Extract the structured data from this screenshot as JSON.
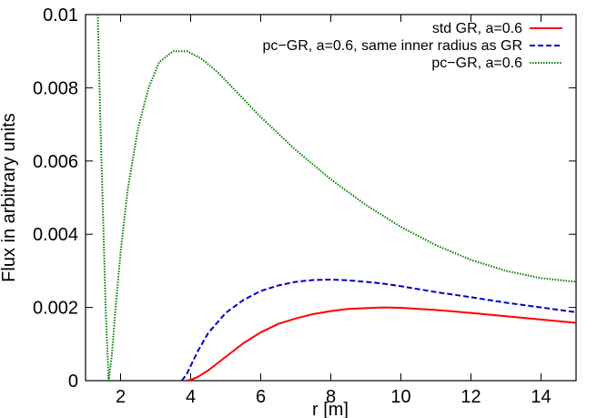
{
  "chart_data": {
    "type": "line",
    "xlabel": "r [m]",
    "ylabel": "Flux in arbitrary units",
    "xlim": [
      1,
      15
    ],
    "ylim": [
      0,
      0.01
    ],
    "xticks": [
      "2",
      "4",
      "6",
      "8",
      "10",
      "12",
      "14"
    ],
    "yticks": [
      "0",
      "0.002",
      "0.004",
      "0.006",
      "0.008",
      "0.01"
    ],
    "legend_position": "top-right",
    "grid": false,
    "series": [
      {
        "name": "std GR, a=0.6",
        "color": "#ff0000",
        "dash": "solid",
        "x": [
          3.85,
          4.0,
          4.2,
          4.5,
          5.0,
          5.5,
          6.0,
          6.5,
          7.0,
          7.5,
          8.0,
          8.5,
          9.0,
          9.5,
          10.0,
          11.0,
          12.0,
          13.0,
          14.0,
          15.0
        ],
        "y": [
          0.0,
          2e-05,
          0.0001,
          0.00028,
          0.00065,
          0.00102,
          0.00132,
          0.00155,
          0.0017,
          0.00182,
          0.0019,
          0.00196,
          0.00198,
          0.002,
          0.00199,
          0.00193,
          0.00185,
          0.00176,
          0.00167,
          0.00158
        ]
      },
      {
        "name": "pc−GR, a=0.6, same inner radius as GR",
        "color": "#0000cc",
        "dash": "dashed",
        "x": [
          3.75,
          3.9,
          4.0,
          4.2,
          4.5,
          5.0,
          5.5,
          6.0,
          6.5,
          7.0,
          7.5,
          8.0,
          8.5,
          9.0,
          9.5,
          10.0,
          11.0,
          12.0,
          13.0,
          14.0,
          15.0
        ],
        "y": [
          0.0,
          0.0002,
          0.0004,
          0.0008,
          0.0013,
          0.00185,
          0.0022,
          0.00245,
          0.0026,
          0.0027,
          0.00275,
          0.00276,
          0.00274,
          0.0027,
          0.00265,
          0.00258,
          0.00242,
          0.00228,
          0.00213,
          0.002,
          0.00187
        ]
      },
      {
        "name": "pc−GR, a=0.6",
        "color": "#008000",
        "dash": "dotted",
        "x": [
          1.35,
          1.42,
          1.5,
          1.58,
          1.66,
          1.75,
          1.85,
          2.0,
          2.2,
          2.5,
          2.8,
          3.1,
          3.5,
          3.9,
          4.3,
          4.8,
          5.5,
          6.0,
          7.0,
          8.0,
          9.0,
          10.0,
          11.0,
          12.0,
          13.0,
          14.0,
          15.0
        ],
        "y": [
          0.01,
          0.0072,
          0.0045,
          0.0018,
          0.0,
          0.0007,
          0.0019,
          0.0035,
          0.0052,
          0.0069,
          0.008,
          0.0087,
          0.009,
          0.009,
          0.0088,
          0.0084,
          0.0077,
          0.0072,
          0.0063,
          0.0055,
          0.0048,
          0.0042,
          0.0037,
          0.0033,
          0.003,
          0.0028,
          0.0027
        ]
      }
    ]
  }
}
